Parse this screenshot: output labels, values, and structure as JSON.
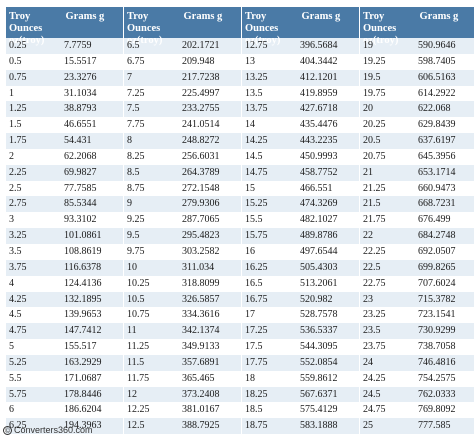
{
  "tables": [
    {
      "header": {
        "oz": "Troy Ounces oz(troy)",
        "g": "Grams g"
      },
      "rows": [
        [
          "0.25",
          "7.7759"
        ],
        [
          "0.5",
          "15.5517"
        ],
        [
          "0.75",
          "23.3276"
        ],
        [
          "1",
          "31.1034"
        ],
        [
          "1.25",
          "38.8793"
        ],
        [
          "1.5",
          "46.6551"
        ],
        [
          "1.75",
          "54.431"
        ],
        [
          "2",
          "62.2068"
        ],
        [
          "2.25",
          "69.9827"
        ],
        [
          "2.5",
          "77.7585"
        ],
        [
          "2.75",
          "85.5344"
        ],
        [
          "3",
          "93.3102"
        ],
        [
          "3.25",
          "101.0861"
        ],
        [
          "3.5",
          "108.8619"
        ],
        [
          "3.75",
          "116.6378"
        ],
        [
          "4",
          "124.4136"
        ],
        [
          "4.25",
          "132.1895"
        ],
        [
          "4.5",
          "139.9653"
        ],
        [
          "4.75",
          "147.7412"
        ],
        [
          "5",
          "155.517"
        ],
        [
          "5.25",
          "163.2929"
        ],
        [
          "5.5",
          "171.0687"
        ],
        [
          "5.75",
          "178.8446"
        ],
        [
          "6",
          "186.6204"
        ],
        [
          "6.25",
          "194.3963"
        ]
      ]
    },
    {
      "header": {
        "oz": "Troy Ounces oz(troy)",
        "g": "Grams g"
      },
      "rows": [
        [
          "6.5",
          "202.1721"
        ],
        [
          "6.75",
          "209.948"
        ],
        [
          "7",
          "217.7238"
        ],
        [
          "7.25",
          "225.4997"
        ],
        [
          "7.5",
          "233.2755"
        ],
        [
          "7.75",
          "241.0514"
        ],
        [
          "8",
          "248.8272"
        ],
        [
          "8.25",
          "256.6031"
        ],
        [
          "8.5",
          "264.3789"
        ],
        [
          "8.75",
          "272.1548"
        ],
        [
          "9",
          "279.9306"
        ],
        [
          "9.25",
          "287.7065"
        ],
        [
          "9.5",
          "295.4823"
        ],
        [
          "9.75",
          "303.2582"
        ],
        [
          "10",
          "311.034"
        ],
        [
          "10.25",
          "318.8099"
        ],
        [
          "10.5",
          "326.5857"
        ],
        [
          "10.75",
          "334.3616"
        ],
        [
          "11",
          "342.1374"
        ],
        [
          "11.25",
          "349.9133"
        ],
        [
          "11.5",
          "357.6891"
        ],
        [
          "11.75",
          "365.465"
        ],
        [
          "12",
          "373.2408"
        ],
        [
          "12.25",
          "381.0167"
        ],
        [
          "12.5",
          "388.7925"
        ]
      ]
    },
    {
      "header": {
        "oz": "Troy Ounces oz(troy)",
        "g": "Grams g"
      },
      "rows": [
        [
          "12.75",
          "396.5684"
        ],
        [
          "13",
          "404.3442"
        ],
        [
          "13.25",
          "412.1201"
        ],
        [
          "13.5",
          "419.8959"
        ],
        [
          "13.75",
          "427.6718"
        ],
        [
          "14",
          "435.4476"
        ],
        [
          "14.25",
          "443.2235"
        ],
        [
          "14.5",
          "450.9993"
        ],
        [
          "14.75",
          "458.7752"
        ],
        [
          "15",
          "466.551"
        ],
        [
          "15.25",
          "474.3269"
        ],
        [
          "15.5",
          "482.1027"
        ],
        [
          "15.75",
          "489.8786"
        ],
        [
          "16",
          "497.6544"
        ],
        [
          "16.25",
          "505.4303"
        ],
        [
          "16.5",
          "513.2061"
        ],
        [
          "16.75",
          "520.982"
        ],
        [
          "17",
          "528.7578"
        ],
        [
          "17.25",
          "536.5337"
        ],
        [
          "17.5",
          "544.3095"
        ],
        [
          "17.75",
          "552.0854"
        ],
        [
          "18",
          "559.8612"
        ],
        [
          "18.25",
          "567.6371"
        ],
        [
          "18.5",
          "575.4129"
        ],
        [
          "18.75",
          "583.1888"
        ]
      ]
    },
    {
      "header": {
        "oz": "Troy Ounces oz(troy)",
        "g": "Grams g"
      },
      "rows": [
        [
          "19",
          "590.9646"
        ],
        [
          "19.25",
          "598.7405"
        ],
        [
          "19.5",
          "606.5163"
        ],
        [
          "19.75",
          "614.2922"
        ],
        [
          "20",
          "622.068"
        ],
        [
          "20.25",
          "629.8439"
        ],
        [
          "20.5",
          "637.6197"
        ],
        [
          "20.75",
          "645.3956"
        ],
        [
          "21",
          "653.1714"
        ],
        [
          "21.25",
          "660.9473"
        ],
        [
          "21.5",
          "668.7231"
        ],
        [
          "21.75",
          "676.499"
        ],
        [
          "22",
          "684.2748"
        ],
        [
          "22.25",
          "692.0507"
        ],
        [
          "22.5",
          "699.8265"
        ],
        [
          "22.75",
          "707.6024"
        ],
        [
          "23",
          "715.3782"
        ],
        [
          "23.25",
          "723.1541"
        ],
        [
          "23.5",
          "730.9299"
        ],
        [
          "23.75",
          "738.7058"
        ],
        [
          "24",
          "746.4816"
        ],
        [
          "24.25",
          "754.2575"
        ],
        [
          "24.5",
          "762.0333"
        ],
        [
          "24.75",
          "769.8092"
        ],
        [
          "25",
          "777.585"
        ]
      ]
    }
  ],
  "footer": {
    "copyright_symbol": "©",
    "site": "Converters360.com"
  }
}
